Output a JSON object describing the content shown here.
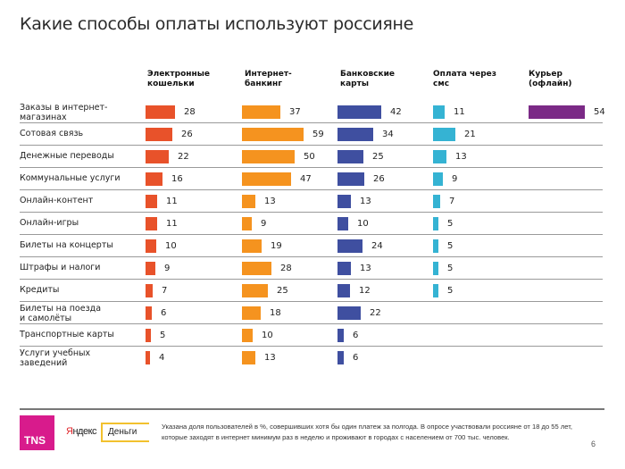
{
  "title": "Какие способы оплаты используют россияне",
  "chart_data": {
    "type": "bar",
    "orientation": "horizontal",
    "title": "Какие способы оплаты используют россияне",
    "unit": "%",
    "categories": [
      "Заказы в интернет-магазинах",
      "Сотовая связь",
      "Денежные переводы",
      "Коммунальные услуги",
      "Онлайн-контент",
      "Онлайн-игры",
      "Билеты на концерты",
      "Штрафы и налоги",
      "Кредиты",
      "Билеты на поезда и самолёты",
      "Транспортные карты",
      "Услуги учебных заведений"
    ],
    "category_lines": [
      [
        "Заказы в интернет-",
        "магазинах"
      ],
      [
        "Сотовая связь"
      ],
      [
        "Денежные переводы"
      ],
      [
        "Коммунальные услуги"
      ],
      [
        "Онлайн-контент"
      ],
      [
        "Онлайн-игры"
      ],
      [
        "Билеты на концерты"
      ],
      [
        "Штрафы и налоги"
      ],
      [
        "Кредиты"
      ],
      [
        "Билеты на поезда",
        "и самолёты"
      ],
      [
        "Транспортные  карты"
      ],
      [
        "Услуги учебных",
        "заведений"
      ]
    ],
    "series": [
      {
        "name": "Электронные кошельки",
        "header_lines": [
          "Электронные",
          "кошельки"
        ],
        "color": "#e8522a",
        "values": [
          28,
          26,
          22,
          16,
          11,
          11,
          10,
          9,
          7,
          6,
          5,
          4
        ]
      },
      {
        "name": "Интернет-банкинг",
        "header_lines": [
          "Интернет-",
          "банкинг"
        ],
        "color": "#f5931f",
        "values": [
          37,
          59,
          50,
          47,
          13,
          9,
          19,
          28,
          25,
          18,
          10,
          13
        ]
      },
      {
        "name": "Банковские карты",
        "header_lines": [
          "Банковские",
          "карты"
        ],
        "color": "#3f4fa0",
        "values": [
          42,
          34,
          25,
          26,
          13,
          10,
          24,
          13,
          12,
          22,
          6,
          6
        ]
      },
      {
        "name": "Оплата через смс",
        "header_lines": [
          "Оплата через",
          "смс"
        ],
        "color": "#35b3d3",
        "values": [
          11,
          21,
          13,
          9,
          7,
          5,
          5,
          5,
          5,
          null,
          null,
          null
        ]
      },
      {
        "name": "Курьер (офлайн)",
        "header_lines": [
          "Курьер",
          "(офлайн)"
        ],
        "color": "#7b2a86",
        "values": [
          54,
          null,
          null,
          null,
          null,
          null,
          null,
          null,
          null,
          null,
          null,
          null
        ]
      }
    ],
    "legend": "column-headers-top",
    "grid": false
  },
  "footer": {
    "tns_logo": "TNS",
    "yandex_logo_red": "Я",
    "yandex_logo_rest": "ндекс",
    "dengi_logo": "Деньги",
    "note": "Указана доля пользователей в %, совершивших хотя бы один платеж за полгода. В опросе участвовали россияне от 18 до 55 лет, которые заходят в интернет минимум раз в неделю и проживают в городах с населением от 700 тыс. человек.",
    "page_number": "6"
  }
}
